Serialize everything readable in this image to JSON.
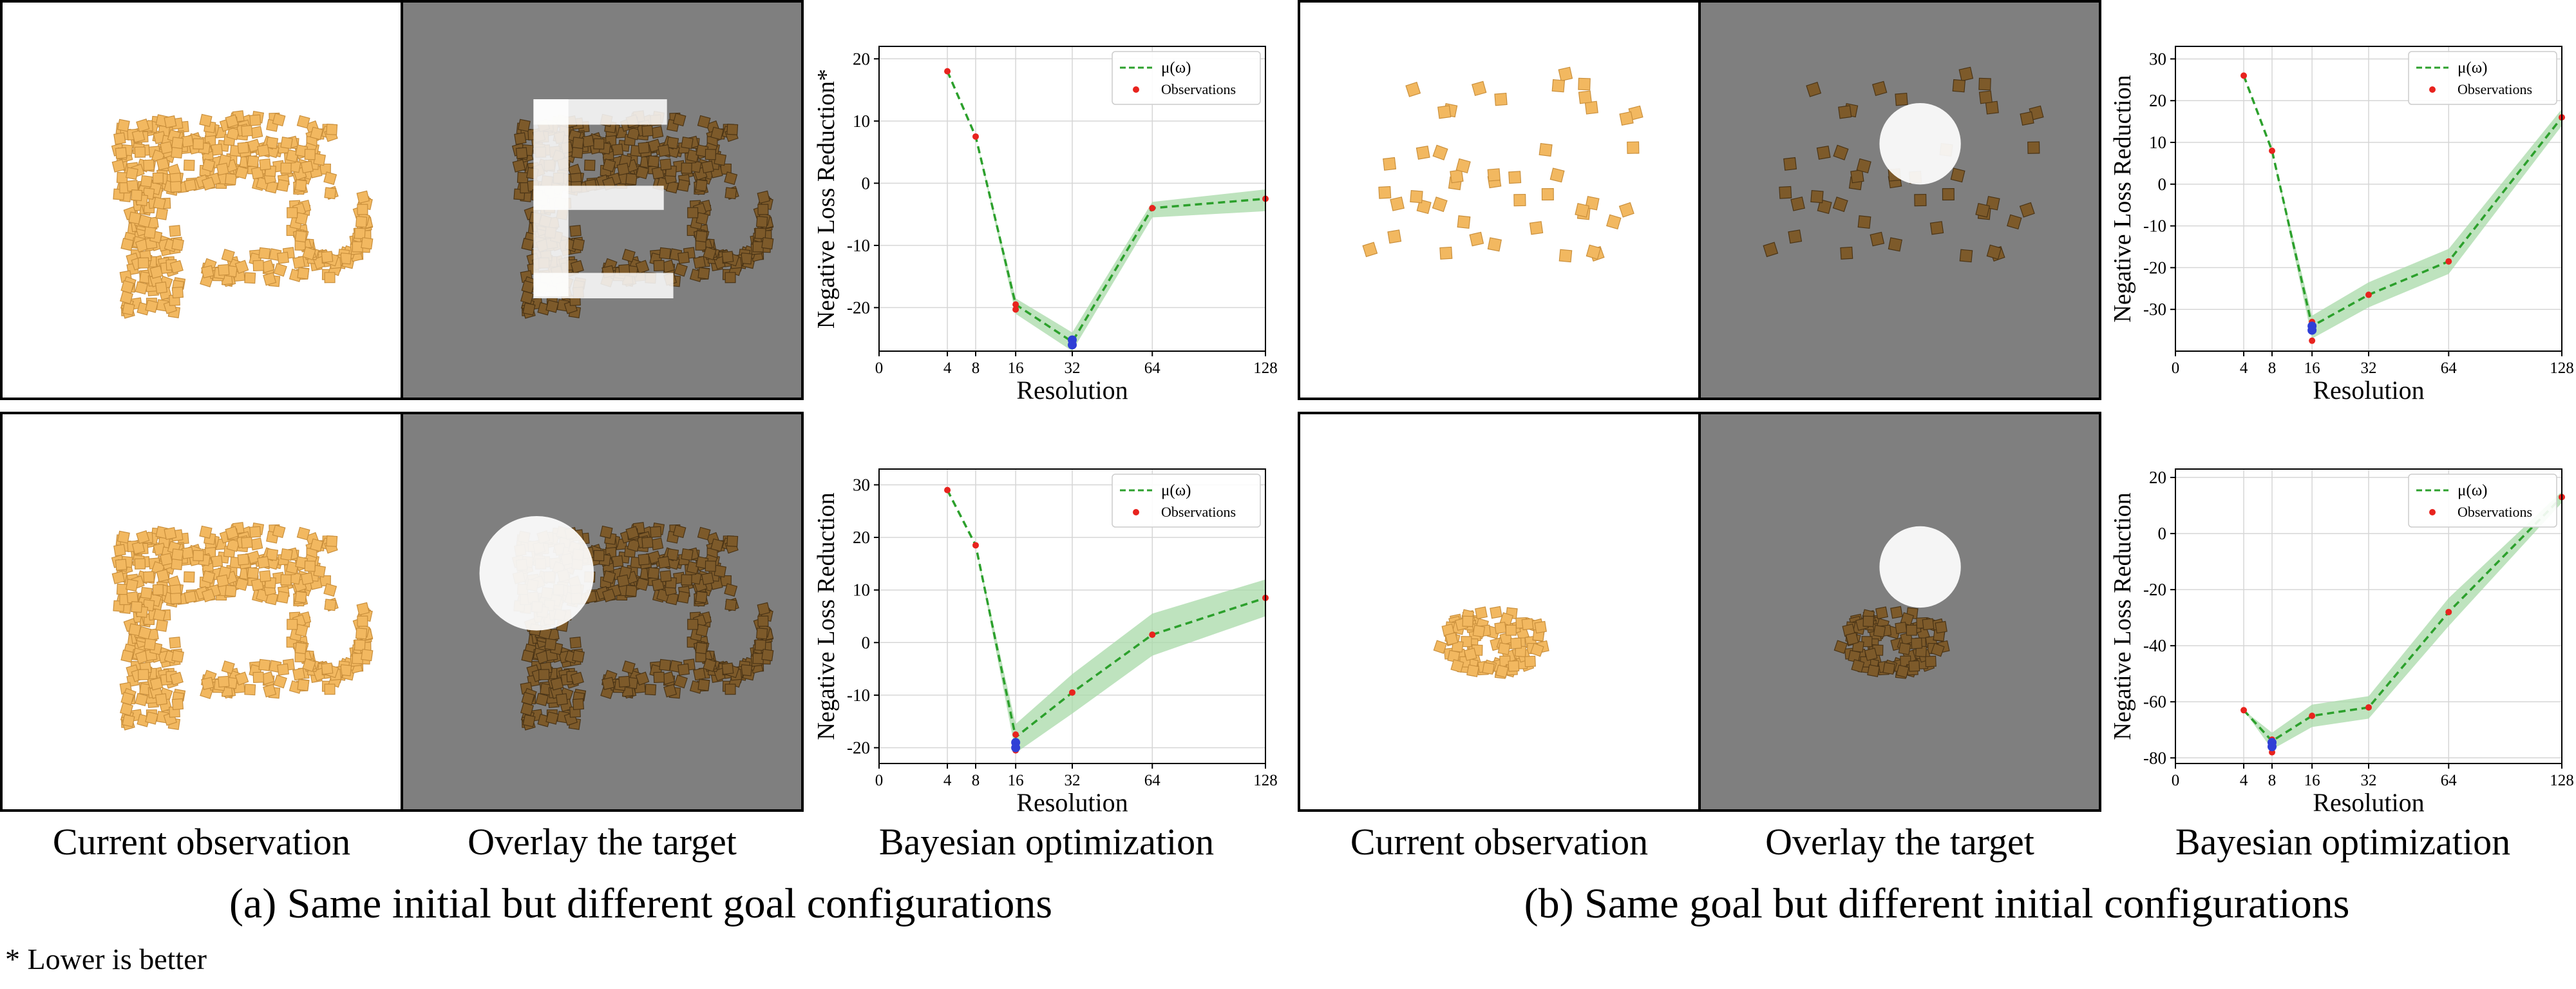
{
  "captions": {
    "left": [
      "Current observation",
      "Overlay the target",
      "Bayesian optimization"
    ],
    "right": [
      "Current observation",
      "Overlay the target",
      "Bayesian optimization"
    ],
    "sub_a": "(a) Same initial but different goal configurations",
    "sub_b": "(b) Same goal but different initial configurations",
    "footnote": "* Lower is better"
  },
  "colors": {
    "mean_line": "#2ca02c",
    "band": "#a8d9a8",
    "observation": "#e8231e",
    "best_point": "#2f3fd6",
    "block_light": "#f2b860",
    "block_dark": "#7d5a2a",
    "target_overlay": "#ffffff",
    "panel_gray": "#7f7f7f"
  },
  "panels": [
    {
      "id": "a1-current",
      "shape": "letter-p",
      "target": "none"
    },
    {
      "id": "a1-overlay",
      "shape": "letter-p",
      "target": "letter-E"
    },
    {
      "id": "a2-current",
      "shape": "letter-p",
      "target": "none"
    },
    {
      "id": "a2-overlay",
      "shape": "letter-p",
      "target": "circle"
    },
    {
      "id": "b1-current",
      "shape": "scattered",
      "target": "none"
    },
    {
      "id": "b1-overlay",
      "shape": "scattered",
      "target": "circle"
    },
    {
      "id": "b2-current",
      "shape": "pile",
      "target": "none"
    },
    {
      "id": "b2-overlay",
      "shape": "pile",
      "target": "circle"
    }
  ],
  "chart_data": [
    {
      "type": "line",
      "ylabel": "Negative Loss Reduction*",
      "xlabel": "Resolution",
      "xticks": [
        0,
        4,
        8,
        16,
        32,
        64,
        128
      ],
      "yticks": [
        20,
        10,
        0,
        -10,
        -20
      ],
      "ylim": [
        -27,
        22
      ],
      "grid": true,
      "legend": {
        "placement": "top-right",
        "entries": [
          "μ(ω)",
          "Observations"
        ]
      },
      "mean": {
        "x": [
          4,
          8,
          16,
          32,
          64,
          128
        ],
        "y": [
          18,
          7.5,
          -19.5,
          -25.5,
          -4,
          -2.5
        ]
      },
      "band": {
        "x": [
          4,
          8,
          16,
          32,
          64,
          128
        ],
        "lower": [
          18,
          7.5,
          -21,
          -27,
          -5.5,
          -4.5
        ],
        "upper": [
          18,
          7.5,
          -18.5,
          -24,
          -3,
          -1
        ]
      },
      "observations": [
        [
          4,
          18
        ],
        [
          8,
          7.5
        ],
        [
          16,
          -19.5
        ],
        [
          16,
          -20.3
        ],
        [
          32,
          -25
        ],
        [
          32,
          -25.5
        ],
        [
          32,
          -26
        ],
        [
          64,
          -4
        ],
        [
          128,
          -2.5
        ]
      ],
      "best": [
        [
          32,
          -25.2
        ],
        [
          32,
          -26
        ]
      ]
    },
    {
      "type": "line",
      "ylabel": "Negative Loss Reduction",
      "xlabel": "Resolution",
      "xticks": [
        0,
        4,
        8,
        16,
        32,
        64,
        128
      ],
      "yticks": [
        30,
        20,
        10,
        0,
        -10,
        -20,
        -30
      ],
      "ylim": [
        -40,
        33
      ],
      "grid": true,
      "legend": {
        "placement": "top-right",
        "entries": [
          "μ(ω)",
          "Observations"
        ]
      },
      "mean": {
        "x": [
          4,
          8,
          16,
          32,
          64,
          128
        ],
        "y": [
          26,
          8,
          -34,
          -26.5,
          -18.5,
          16
        ]
      },
      "band": {
        "x": [
          4,
          8,
          16,
          32,
          64,
          128
        ],
        "lower": [
          26,
          8,
          -37,
          -29.5,
          -21.5,
          14
        ],
        "upper": [
          26,
          8,
          -31.5,
          -23.5,
          -15.5,
          18
        ]
      },
      "observations": [
        [
          4,
          26
        ],
        [
          8,
          8
        ],
        [
          16,
          -33
        ],
        [
          16,
          -34
        ],
        [
          16,
          -37.5
        ],
        [
          32,
          -26.5
        ],
        [
          64,
          -18.5
        ],
        [
          128,
          16
        ]
      ],
      "best": [
        [
          16,
          -34
        ],
        [
          16,
          -35
        ]
      ]
    },
    {
      "type": "line",
      "ylabel": "Negative Loss Reduction",
      "xlabel": "Resolution",
      "xticks": [
        0,
        4,
        8,
        16,
        32,
        64,
        128
      ],
      "yticks": [
        30,
        20,
        10,
        0,
        -10,
        -20
      ],
      "ylim": [
        -23,
        33
      ],
      "grid": true,
      "legend": {
        "placement": "top-right",
        "entries": [
          "μ(ω)",
          "Observations"
        ]
      },
      "mean": {
        "x": [
          4,
          8,
          16,
          32,
          64,
          128
        ],
        "y": [
          29,
          18.5,
          -18,
          -9.5,
          1.5,
          8.5
        ]
      },
      "band": {
        "x": [
          4,
          8,
          16,
          32,
          64,
          128
        ],
        "lower": [
          29,
          18.5,
          -21,
          -13.5,
          -2.5,
          5
        ],
        "upper": [
          29,
          18.5,
          -15.5,
          -6,
          5.5,
          12
        ]
      },
      "observations": [
        [
          4,
          29
        ],
        [
          8,
          18.5
        ],
        [
          16,
          -17.5
        ],
        [
          16,
          -19
        ],
        [
          16,
          -20.5
        ],
        [
          32,
          -9.5
        ],
        [
          64,
          1.5
        ],
        [
          128,
          8.5
        ]
      ],
      "best": [
        [
          16,
          -19
        ],
        [
          16,
          -20
        ]
      ]
    },
    {
      "type": "line",
      "ylabel": "Negative Loss Reduction",
      "xlabel": "Resolution",
      "xticks": [
        0,
        4,
        8,
        16,
        32,
        64,
        128
      ],
      "yticks": [
        20,
        0,
        -20,
        -40,
        -60,
        -80
      ],
      "ylim": [
        -82,
        23
      ],
      "grid": true,
      "legend": {
        "placement": "top-right",
        "entries": [
          "μ(ω)",
          "Observations"
        ]
      },
      "mean": {
        "x": [
          4,
          8,
          16,
          32,
          64,
          128
        ],
        "y": [
          -63,
          -74,
          -65,
          -62,
          -28,
          13
        ]
      },
      "band": {
        "x": [
          4,
          8,
          16,
          32,
          64,
          128
        ],
        "lower": [
          -63,
          -77,
          -69,
          -66,
          -33,
          11
        ],
        "upper": [
          -63,
          -71,
          -61,
          -58,
          -23,
          15
        ]
      },
      "observations": [
        [
          4,
          -63
        ],
        [
          8,
          -73.5
        ],
        [
          8,
          -75.5
        ],
        [
          8,
          -78
        ],
        [
          16,
          -65
        ],
        [
          32,
          -62
        ],
        [
          64,
          -28
        ],
        [
          128,
          13
        ]
      ],
      "best": [
        [
          8,
          -74.5
        ],
        [
          8,
          -76
        ]
      ]
    }
  ]
}
